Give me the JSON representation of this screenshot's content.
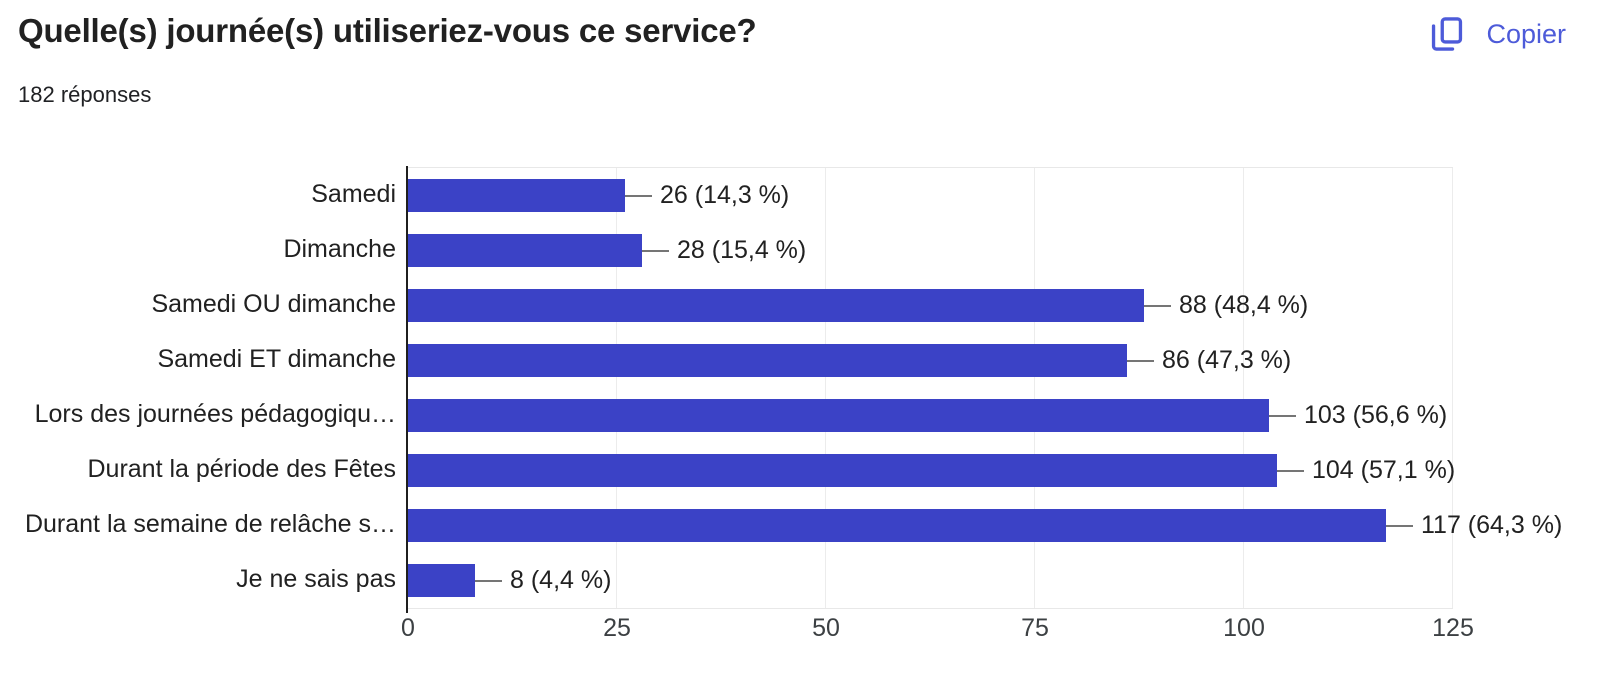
{
  "header": {
    "title": "Quelle(s) journée(s) utiliseriez-vous ce service?",
    "responses_count": "182 réponses",
    "copy_button": {
      "label": "Copier"
    }
  },
  "chart_data": {
    "type": "bar",
    "orientation": "horizontal",
    "title": "Quelle(s) journée(s) utiliseriez-vous ce service?",
    "subtitle": "182 réponses",
    "categories": [
      "Samedi",
      "Dimanche",
      "Samedi OU dimanche",
      "Samedi ET dimanche",
      "Lors des journées pédagogiqu…",
      "Durant la période des Fêtes",
      "Durant la semaine de relâche s…",
      "Je ne sais pas"
    ],
    "values": [
      26,
      28,
      88,
      86,
      103,
      104,
      117,
      8
    ],
    "value_labels": [
      "26 (14,3 %)",
      "28 (15,4 %)",
      "88 (48,4 %)",
      "86 (47,3 %)",
      "103 (56,6 %)",
      "104 (57,1 %)",
      "117 (64,3 %)",
      "8 (4,4 %)"
    ],
    "x_ticks": [
      0,
      25,
      50,
      75,
      100,
      125
    ],
    "xlim": [
      0,
      125
    ],
    "grid": true,
    "legend": "none",
    "colors": {
      "bar": "#3b42c6",
      "accent_link": "#4d5bd9",
      "axis_line": "#1f1f1f",
      "gridline": "#ececec",
      "leader_line": "#757575",
      "text": "#212121",
      "tick_text": "#3c4043"
    }
  }
}
